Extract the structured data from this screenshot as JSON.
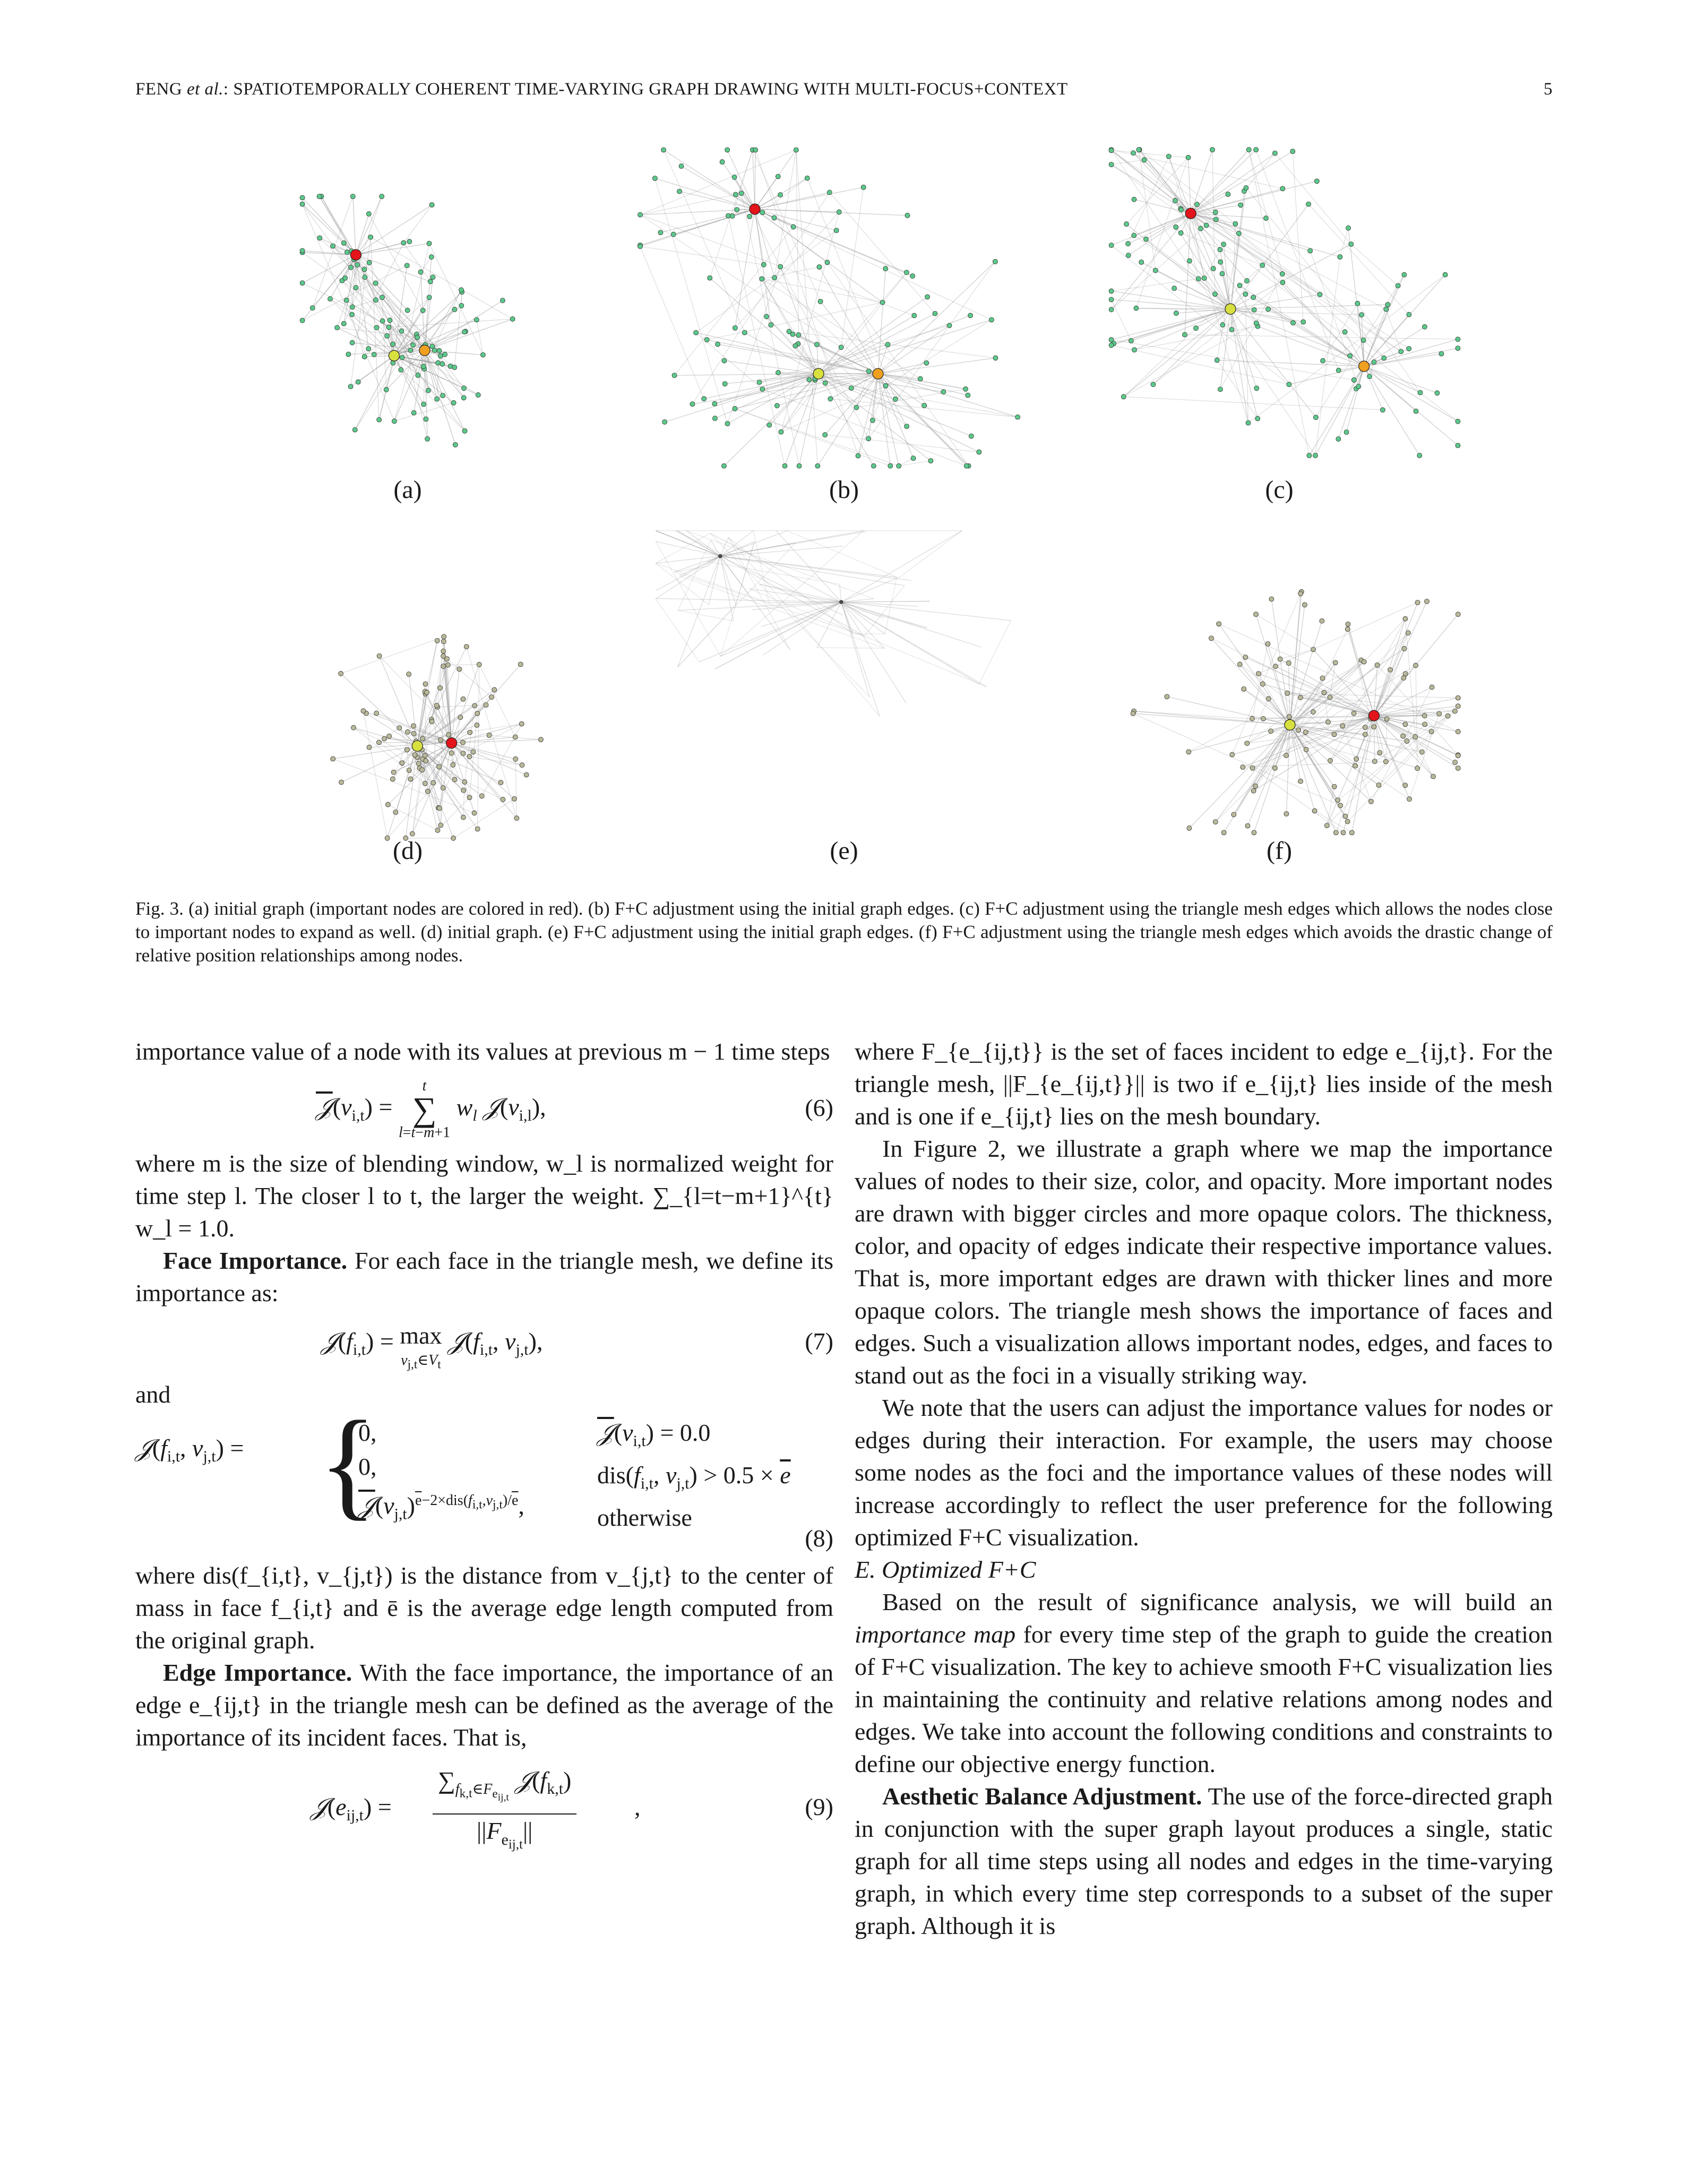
{
  "header": {
    "running_title_pre": "FENG ",
    "running_title_etal": "et al.",
    "running_title_post": ": SPATIOTEMPORALLY COHERENT TIME-VARYING GRAPH DRAWING WITH MULTI-FOCUS+CONTEXT",
    "page_number": "5"
  },
  "figure": {
    "subfigures": [
      {
        "label": "(a)",
        "kind": "green"
      },
      {
        "label": "(b)",
        "kind": "green"
      },
      {
        "label": "(c)",
        "kind": "green"
      },
      {
        "label": "(d)",
        "kind": "gray"
      },
      {
        "label": "(e)",
        "kind": "faint"
      },
      {
        "label": "(f)",
        "kind": "gray"
      }
    ],
    "caption": "Fig. 3.   (a) initial graph (important nodes are colored in red). (b) F+C adjustment using the initial graph edges. (c) F+C adjustment using the triangle mesh edges which allows the nodes close to important nodes to expand as well. (d) initial graph. (e) F+C adjustment using the initial graph edges. (f) F+C adjustment using the triangle mesh edges which avoids the drastic change of relative position relationships among nodes.",
    "colors": {
      "important": "#e3141a",
      "mid": "#f0a020",
      "yellow": "#d8e040",
      "node": "#5cc88a",
      "gray_node": "#b9b89a",
      "edge": "#9a9a9a"
    }
  },
  "left_column": {
    "p1": "importance value of a node with its values at previous m − 1 time steps",
    "eq6_number": "(6)",
    "p2": "where m is the size of blending window, w_l is normalized weight for time step l. The closer l to t, the larger the weight. ∑_{l=t−m+1}^{t} w_l = 1.0.",
    "face_heading": "Face Importance.",
    "face_text": " For each face in the triangle mesh, we define its importance as:",
    "eq7_number": "(7)",
    "and": "and",
    "eq8_number": "(8)",
    "p3": "where dis(f_{i,t}, v_{j,t}) is the distance from v_{j,t} to the center of mass in face f_{i,t} and ē is the average edge length computed from the original graph.",
    "edge_heading": "Edge Importance.",
    "edge_text": " With the face importance, the importance of an edge e_{ij,t} in the triangle mesh can be defined as the average of the importance of its incident faces. That is,",
    "eq9_number": "(9)"
  },
  "right_column": {
    "p1": "where F_{e_{ij,t}} is the set of faces incident to edge e_{ij,t}. For the triangle mesh, ||F_{e_{ij,t}}|| is two if e_{ij,t} lies inside of the mesh and is one if e_{ij,t} lies on the mesh boundary.",
    "p2": "In Figure 2, we illustrate a graph where we map the importance values of nodes to their size, color, and opacity. More important nodes are drawn with bigger circles and more opaque colors. The thickness, color, and opacity of edges indicate their respective importance values. That is, more important edges are drawn with thicker lines and more opaque colors. The triangle mesh shows the importance of faces and edges. Such a visualization allows important nodes, edges, and faces to stand out as the foci in a visually striking way.",
    "p3": "We note that the users can adjust the importance values for nodes or edges during their interaction. For example, the users may choose some nodes as the foci and the importance values of these nodes will increase accordingly to reflect the user preference for the following optimized F+C visualization.",
    "section_heading": "E.  Optimized F+C",
    "p4_pre": "Based on the result of significance analysis, we will build an ",
    "p4_em": "importance map",
    "p4_post": " for every time step of the graph to guide the creation of F+C visualization. The key to achieve smooth F+C visualization lies in maintaining the continuity and relative relations among nodes and edges. We take into account the following conditions and constraints to define our objective energy function.",
    "aes_heading": "Aesthetic Balance Adjustment.",
    "aes_text": " The use of the force-directed graph in conjunction with the super graph layout produces a single, static graph for all time steps using all nodes and edges in the time-varying graph, in which every time step corresponds to a subset of the super graph. Although it is"
  }
}
